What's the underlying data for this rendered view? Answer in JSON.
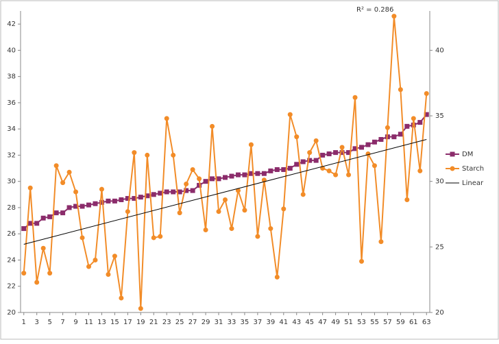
{
  "chart_data": {
    "type": "line",
    "annotation": "R² = 0.286",
    "x": [
      1,
      2,
      3,
      4,
      5,
      6,
      7,
      8,
      9,
      10,
      11,
      12,
      13,
      14,
      15,
      16,
      17,
      18,
      19,
      20,
      21,
      22,
      23,
      24,
      25,
      26,
      27,
      28,
      29,
      30,
      31,
      32,
      33,
      34,
      35,
      36,
      37,
      38,
      39,
      40,
      41,
      42,
      43,
      44,
      45,
      46,
      47,
      48,
      49,
      50,
      51,
      52,
      53,
      54,
      55,
      56,
      57,
      58,
      59,
      60,
      61,
      62,
      63
    ],
    "xlim": [
      0.5,
      63.5
    ],
    "xticks": [
      1,
      3,
      5,
      7,
      9,
      11,
      13,
      15,
      17,
      19,
      21,
      23,
      25,
      27,
      29,
      31,
      33,
      35,
      37,
      39,
      41,
      43,
      45,
      47,
      49,
      51,
      53,
      55,
      57,
      59,
      61,
      63
    ],
    "ylim": [
      20,
      43
    ],
    "yticks": [
      20,
      22,
      24,
      26,
      28,
      30,
      32,
      34,
      36,
      38,
      40,
      42
    ],
    "y2lim": [
      20,
      43
    ],
    "y2ticks": [
      20,
      25,
      30,
      35,
      40
    ],
    "legend": "right",
    "series": [
      {
        "name": "DM",
        "color": "#8b2c6b",
        "marker": "square",
        "axis": "y2",
        "values": [
          26.4,
          26.8,
          26.8,
          27.2,
          27.3,
          27.6,
          27.6,
          28.0,
          28.1,
          28.1,
          28.2,
          28.3,
          28.4,
          28.5,
          28.5,
          28.6,
          28.7,
          28.7,
          28.8,
          28.9,
          29.0,
          29.1,
          29.2,
          29.2,
          29.2,
          29.3,
          29.3,
          29.7,
          30.0,
          30.2,
          30.2,
          30.3,
          30.4,
          30.5,
          30.5,
          30.6,
          30.6,
          30.6,
          30.8,
          30.9,
          30.9,
          31.0,
          31.3,
          31.5,
          31.6,
          31.6,
          32.0,
          32.1,
          32.2,
          32.2,
          32.2,
          32.5,
          32.6,
          32.8,
          33.0,
          33.2,
          33.4,
          33.4,
          33.6,
          34.2,
          34.3,
          34.5,
          35.1
        ]
      },
      {
        "name": "Starch",
        "color": "#f28c28",
        "marker": "circle",
        "values": [
          23.0,
          29.5,
          22.3,
          24.9,
          23.0,
          31.2,
          29.9,
          30.7,
          29.2,
          25.7,
          23.5,
          24.0,
          29.4,
          22.9,
          24.3,
          21.1,
          27.7,
          32.2,
          20.3,
          32.0,
          25.7,
          25.8,
          34.8,
          32.0,
          27.6,
          29.8,
          30.9,
          30.2,
          26.3,
          34.2,
          27.7,
          28.6,
          26.4,
          29.3,
          27.8,
          32.8,
          25.8,
          30.1,
          26.4,
          22.7,
          27.9,
          35.1,
          33.4,
          29.0,
          32.2,
          33.1,
          31.0,
          30.8,
          30.5,
          32.6,
          30.5,
          36.4,
          23.9,
          32.1,
          31.2,
          25.4,
          34.1,
          42.6,
          37.0,
          28.6,
          34.8,
          30.8,
          36.7
        ]
      }
    ],
    "trendline": {
      "name": "Linear",
      "color": "#000000",
      "x": [
        1,
        63
      ],
      "values": [
        25.2,
        33.2
      ]
    }
  }
}
